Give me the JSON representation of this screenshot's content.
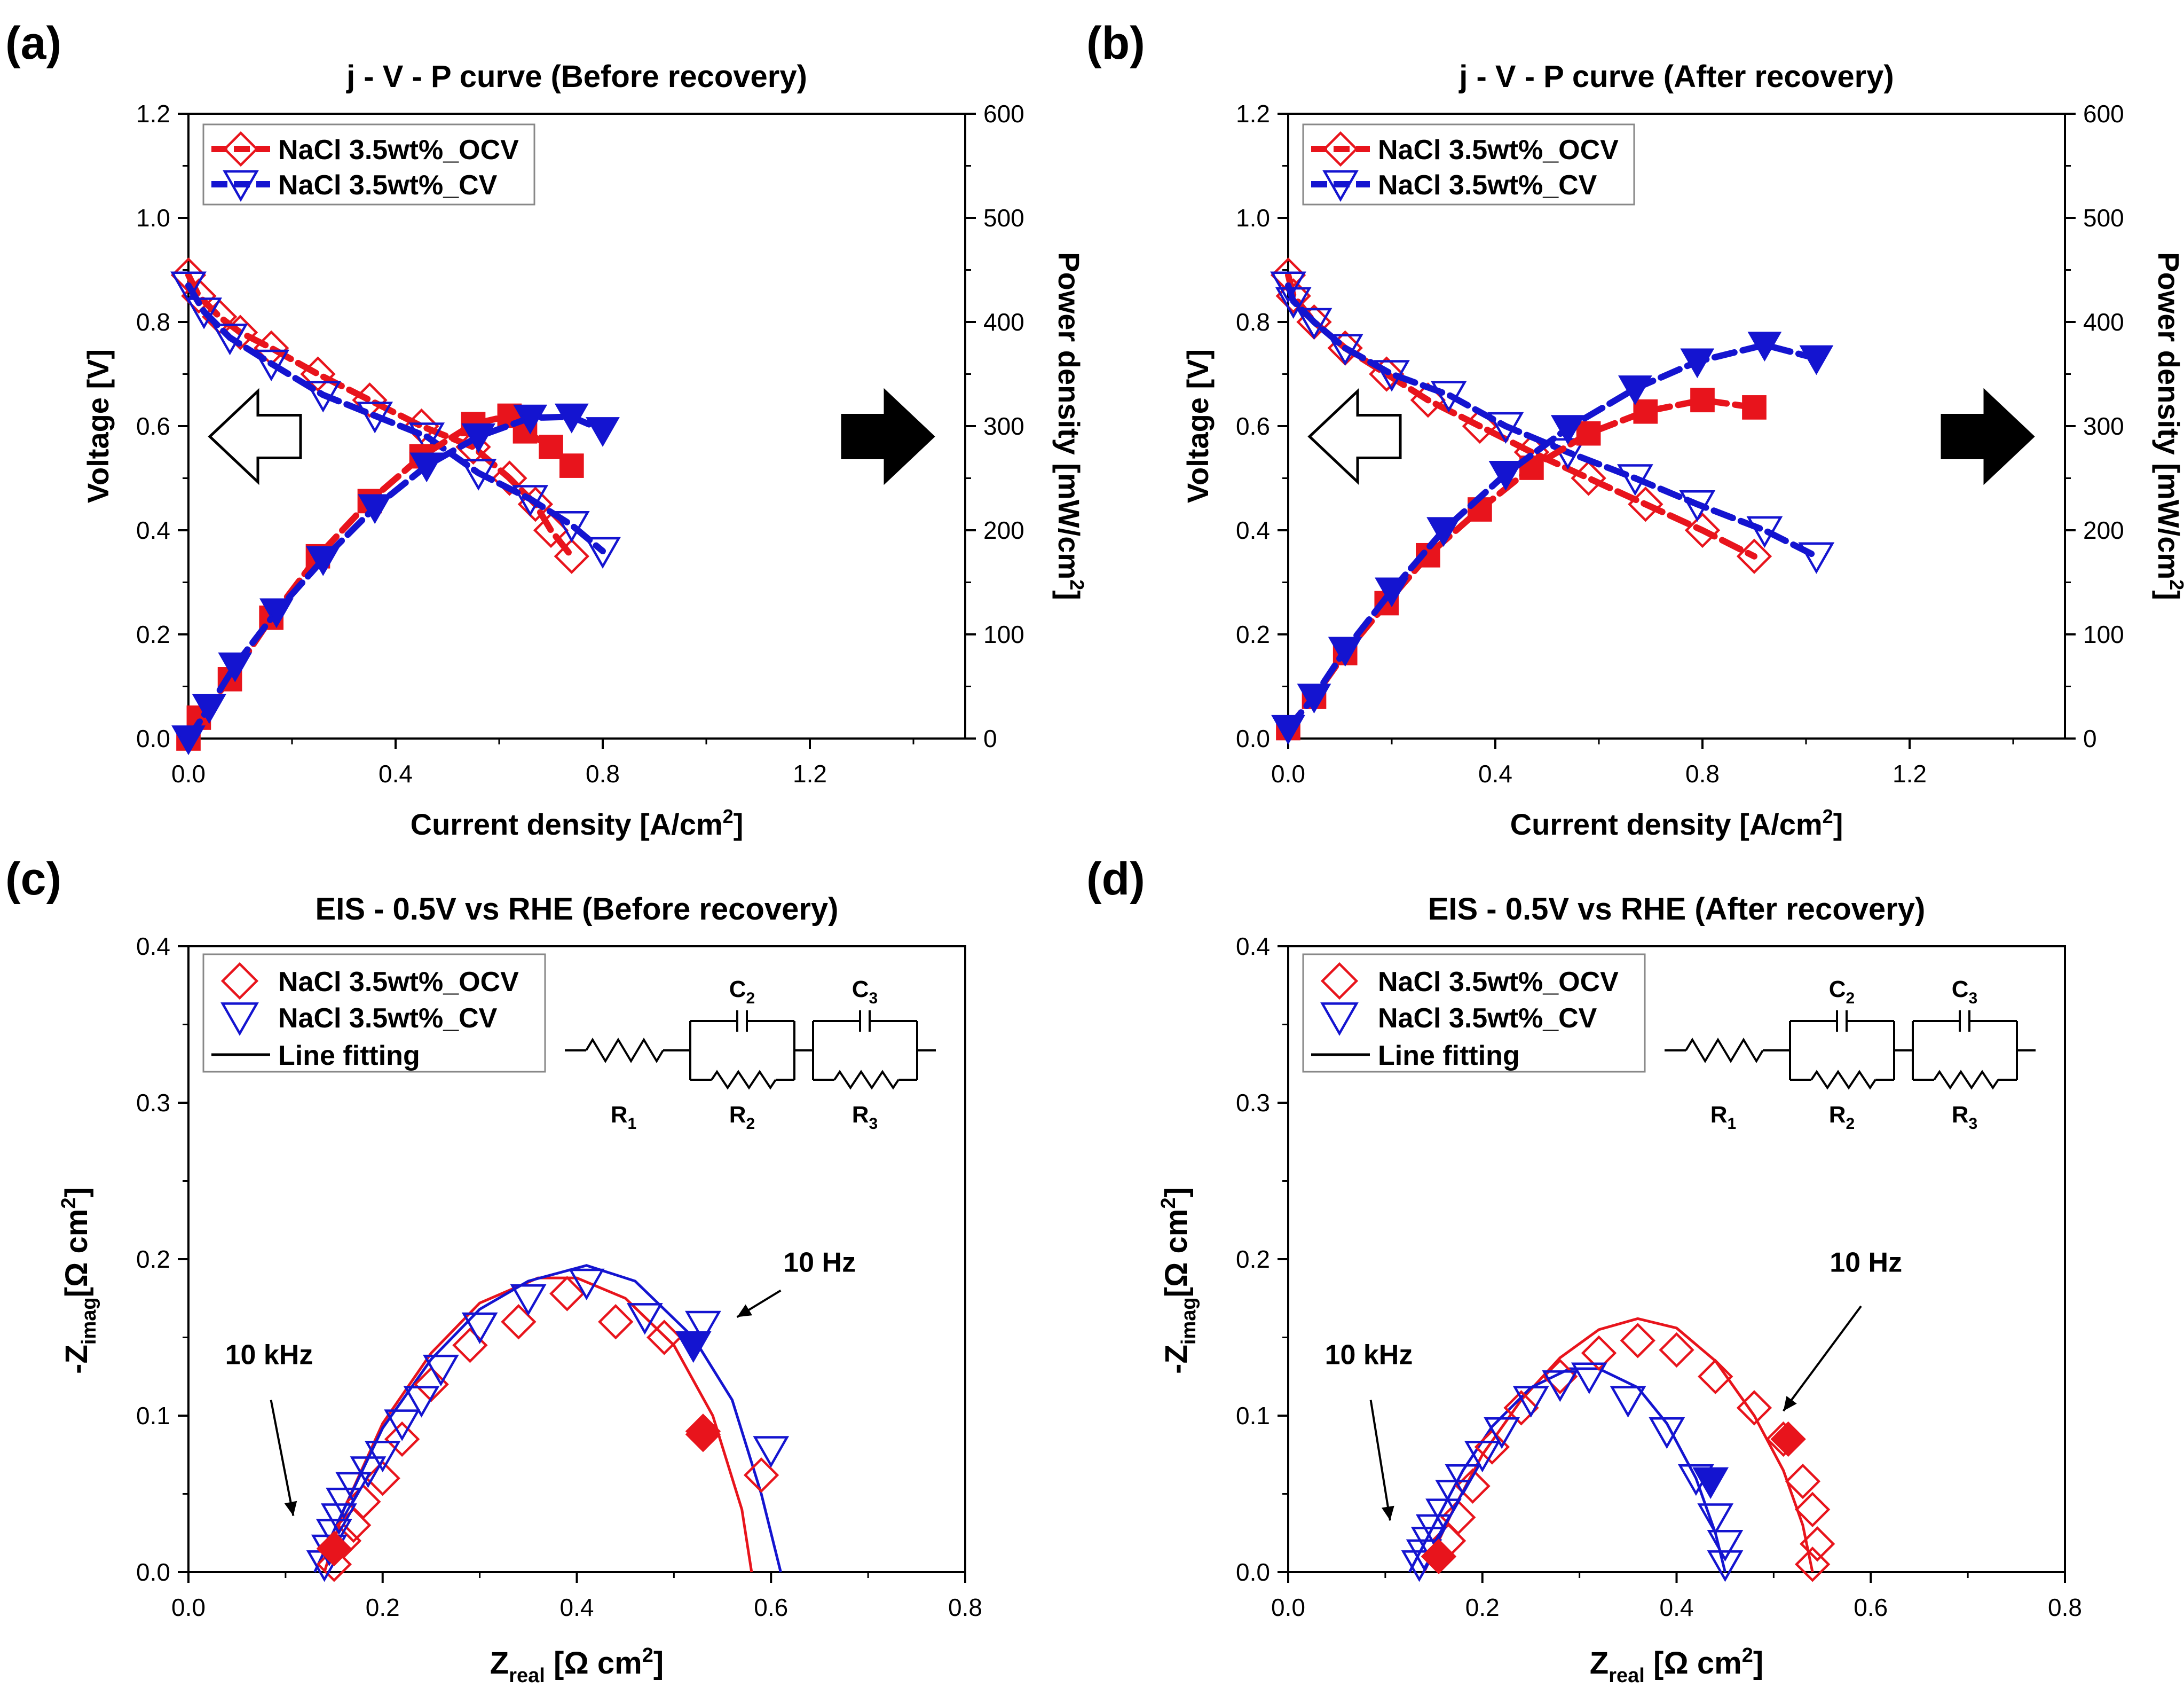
{
  "figure": {
    "panel_labels": [
      "(a)",
      "(b)",
      "(c)",
      "(d)"
    ]
  },
  "colors": {
    "ocv": "#e8141c",
    "cv": "#1414d0",
    "ink": "#000000"
  },
  "chart_data": [
    {
      "panel": "(a)",
      "type": "line",
      "title": "j - V - P curve (Before recovery)",
      "xlabel": "Current density [A/cm",
      "xlabel_sup": "2",
      "xlabel_end": "]",
      "ylabel": "Voltage [V]",
      "y2label": "Power density [mW/cm",
      "y2label_sup": "2",
      "y2label_end": "]",
      "xlim": [
        0,
        1.5
      ],
      "ylim": [
        0,
        1.2
      ],
      "y2lim": [
        0,
        600
      ],
      "xticks": [
        "0.0",
        "0.4",
        "0.8",
        "1.2"
      ],
      "yticks": [
        "0.0",
        "0.2",
        "0.4",
        "0.6",
        "0.8",
        "1.0",
        "1.2"
      ],
      "y2ticks": [
        "0",
        "100",
        "200",
        "300",
        "400",
        "500",
        "600"
      ],
      "legend": [
        "NaCl 3.5wt%_OCV",
        "NaCl 3.5wt%_CV"
      ],
      "series": [
        {
          "name": "NaCl 3.5wt%_OCV",
          "kind": "voltage",
          "color": "#e8141c",
          "marker": "diamond-open",
          "x": [
            0,
            0.02,
            0.06,
            0.1,
            0.16,
            0.25,
            0.35,
            0.45,
            0.55,
            0.62,
            0.67,
            0.7,
            0.74
          ],
          "y": [
            0.89,
            0.85,
            0.81,
            0.78,
            0.75,
            0.7,
            0.65,
            0.6,
            0.56,
            0.5,
            0.45,
            0.4,
            0.35
          ]
        },
        {
          "name": "NaCl 3.5wt%_CV",
          "kind": "voltage",
          "color": "#1414d0",
          "marker": "triangle-down-open",
          "x": [
            0,
            0.03,
            0.08,
            0.16,
            0.26,
            0.36,
            0.46,
            0.56,
            0.66,
            0.74,
            0.8
          ],
          "y": [
            0.87,
            0.82,
            0.77,
            0.72,
            0.66,
            0.62,
            0.58,
            0.51,
            0.46,
            0.41,
            0.36
          ]
        },
        {
          "name": "NaCl 3.5wt%_OCV power",
          "kind": "power",
          "color": "#e8141c",
          "marker": "square-filled",
          "x": [
            0,
            0.02,
            0.08,
            0.16,
            0.25,
            0.35,
            0.45,
            0.55,
            0.62,
            0.65,
            0.7,
            0.74
          ],
          "y": [
            0,
            20,
            57,
            116,
            175,
            228,
            271,
            302,
            310,
            295,
            280,
            262
          ]
        },
        {
          "name": "NaCl 3.5wt%_CV power",
          "kind": "power",
          "color": "#1414d0",
          "marker": "triangle-down-filled",
          "x": [
            0,
            0.04,
            0.09,
            0.17,
            0.26,
            0.36,
            0.46,
            0.56,
            0.66,
            0.74,
            0.8
          ],
          "y": [
            0,
            30,
            70,
            122,
            172,
            222,
            262,
            290,
            308,
            309,
            296
          ]
        }
      ]
    },
    {
      "panel": "(b)",
      "type": "line",
      "title": "j - V - P curve (After recovery)",
      "xlabel": "Current density [A/cm",
      "xlabel_sup": "2",
      "xlabel_end": "]",
      "ylabel": "Voltage [V]",
      "y2label": "Power density [mW/cm",
      "y2label_sup": "2",
      "y2label_end": "]",
      "xlim": [
        0,
        1.5
      ],
      "ylim": [
        0,
        1.2
      ],
      "y2lim": [
        0,
        600
      ],
      "xticks": [
        "0.0",
        "0.4",
        "0.8",
        "1.2"
      ],
      "yticks": [
        "0.0",
        "0.2",
        "0.4",
        "0.6",
        "0.8",
        "1.0",
        "1.2"
      ],
      "y2ticks": [
        "0",
        "100",
        "200",
        "300",
        "400",
        "500",
        "600"
      ],
      "legend": [
        "NaCl 3.5wt%_OCV",
        "NaCl 3.5wt%_CV"
      ],
      "series": [
        {
          "name": "NaCl 3.5wt%_OCV",
          "kind": "voltage",
          "color": "#e8141c",
          "marker": "diamond-open",
          "x": [
            0,
            0.01,
            0.05,
            0.11,
            0.19,
            0.27,
            0.37,
            0.47,
            0.58,
            0.69,
            0.8,
            0.9
          ],
          "y": [
            0.89,
            0.85,
            0.8,
            0.75,
            0.7,
            0.65,
            0.6,
            0.55,
            0.5,
            0.45,
            0.4,
            0.35
          ]
        },
        {
          "name": "NaCl 3.5wt%_CV",
          "kind": "voltage",
          "color": "#1414d0",
          "marker": "triangle-down-open",
          "x": [
            0,
            0.01,
            0.05,
            0.11,
            0.2,
            0.31,
            0.42,
            0.54,
            0.67,
            0.79,
            0.92,
            1.02
          ],
          "y": [
            0.87,
            0.84,
            0.8,
            0.75,
            0.7,
            0.66,
            0.6,
            0.55,
            0.5,
            0.45,
            0.4,
            0.35
          ]
        },
        {
          "name": "NaCl 3.5wt%_OCV power",
          "kind": "power",
          "color": "#e8141c",
          "marker": "square-filled",
          "x": [
            0,
            0.05,
            0.11,
            0.19,
            0.27,
            0.37,
            0.47,
            0.58,
            0.69,
            0.8,
            0.9
          ],
          "y": [
            10,
            40,
            82,
            130,
            176,
            220,
            260,
            293,
            314,
            325,
            318
          ]
        },
        {
          "name": "NaCl 3.5wt%_CV power",
          "kind": "power",
          "color": "#1414d0",
          "marker": "triangle-down-filled",
          "x": [
            0,
            0.05,
            0.11,
            0.2,
            0.3,
            0.42,
            0.54,
            0.67,
            0.79,
            0.92,
            1.02
          ],
          "y": [
            10,
            40,
            85,
            142,
            200,
            254,
            298,
            336,
            362,
            378,
            365
          ]
        }
      ]
    },
    {
      "panel": "(c)",
      "type": "scatter",
      "title": "EIS - 0.5V vs RHE (Before recovery)",
      "xlabel": "Z",
      "xlabel_sub": "real",
      "xlabel_end": " [Ω  cm",
      "xlabel_sup": "2",
      "xlabel_close": "]",
      "ylabel": "-Z",
      "ylabel_sub": "imag",
      "ylabel_end": "[Ω cm",
      "ylabel_sup": "2",
      "ylabel_close": "]",
      "xlim": [
        0,
        0.8
      ],
      "ylim": [
        0,
        0.4
      ],
      "xticks": [
        "0.0",
        "0.2",
        "0.4",
        "0.6",
        "0.8"
      ],
      "yticks": [
        "0.0",
        "0.1",
        "0.2",
        "0.3",
        "0.4"
      ],
      "legend": [
        "NaCl 3.5wt%_OCV",
        "NaCl 3.5wt%_CV",
        "Line fitting"
      ],
      "circuit": {
        "labels": [
          "C",
          "C",
          "R",
          "R",
          "R"
        ],
        "subs": [
          "2",
          "3",
          "1",
          "2",
          "3"
        ]
      },
      "annotations": [
        {
          "text": "10 Hz"
        },
        {
          "text": "10 kHz"
        }
      ],
      "series": [
        {
          "name": "NaCl 3.5wt%_OCV",
          "color": "#e8141c",
          "marker": "diamond-open",
          "x": [
            0.15,
            0.16,
            0.17,
            0.18,
            0.2,
            0.22,
            0.25,
            0.29,
            0.34,
            0.39,
            0.44,
            0.49,
            0.53,
            0.59
          ],
          "y": [
            0.005,
            0.02,
            0.03,
            0.045,
            0.06,
            0.085,
            0.12,
            0.145,
            0.16,
            0.178,
            0.16,
            0.15,
            0.09,
            0.062
          ]
        },
        {
          "name": "NaCl 3.5wt%_CV",
          "color": "#1414d0",
          "marker": "triangle-down-open",
          "x": [
            0.14,
            0.145,
            0.15,
            0.155,
            0.16,
            0.17,
            0.185,
            0.2,
            0.22,
            0.24,
            0.26,
            0.3,
            0.35,
            0.41,
            0.47,
            0.53,
            0.6
          ],
          "y": [
            0.005,
            0.015,
            0.025,
            0.035,
            0.045,
            0.055,
            0.065,
            0.075,
            0.095,
            0.11,
            0.13,
            0.157,
            0.175,
            0.185,
            0.163,
            0.158,
            0.078
          ]
        },
        {
          "name": "OCV highlight",
          "color": "#e8141c",
          "marker": "diamond-filled",
          "x": [
            0.15,
            0.53
          ],
          "y": [
            0.015,
            0.088
          ]
        },
        {
          "name": "CV highlight",
          "color": "#1414d0",
          "marker": "triangle-down-filled",
          "x": [
            0.52
          ],
          "y": [
            0.145
          ]
        },
        {
          "name": "Line fitting OCV",
          "color": "#e8141c",
          "marker": "line",
          "x": [
            0.14,
            0.16,
            0.2,
            0.25,
            0.3,
            0.36,
            0.4,
            0.45,
            0.5,
            0.54,
            0.57,
            0.58
          ],
          "y": [
            0,
            0.04,
            0.095,
            0.14,
            0.172,
            0.188,
            0.188,
            0.175,
            0.145,
            0.1,
            0.04,
            0
          ]
        },
        {
          "name": "Line fitting CV",
          "color": "#1414d0",
          "marker": "line",
          "x": [
            0.13,
            0.16,
            0.2,
            0.25,
            0.3,
            0.35,
            0.41,
            0.46,
            0.52,
            0.56,
            0.59,
            0.61
          ],
          "y": [
            0,
            0.04,
            0.092,
            0.136,
            0.168,
            0.186,
            0.196,
            0.186,
            0.15,
            0.11,
            0.05,
            0
          ]
        }
      ]
    },
    {
      "panel": "(d)",
      "type": "scatter",
      "title": "EIS - 0.5V vs RHE (After recovery)",
      "xlabel": "Z",
      "xlabel_sub": "real",
      "xlabel_end": " [Ω  cm",
      "xlabel_sup": "2",
      "xlabel_close": "]",
      "ylabel": "-Z",
      "ylabel_sub": "imag",
      "ylabel_end": "[Ω cm",
      "ylabel_sup": "2",
      "ylabel_close": "]",
      "xlim": [
        0,
        0.8
      ],
      "ylim": [
        0,
        0.4
      ],
      "xticks": [
        "0.0",
        "0.2",
        "0.4",
        "0.6",
        "0.8"
      ],
      "yticks": [
        "0.0",
        "0.1",
        "0.2",
        "0.3",
        "0.4"
      ],
      "legend": [
        "NaCl 3.5wt%_OCV",
        "NaCl 3.5wt%_CV",
        "Line fitting"
      ],
      "circuit": {
        "labels": [
          "C",
          "C",
          "R",
          "R",
          "R"
        ],
        "subs": [
          "2",
          "3",
          "1",
          "2",
          "3"
        ]
      },
      "annotations": [
        {
          "text": "10 Hz"
        },
        {
          "text": "10 kHz"
        }
      ],
      "series": [
        {
          "name": "NaCl 3.5wt%_OCV",
          "color": "#e8141c",
          "marker": "diamond-open",
          "x": [
            0.155,
            0.165,
            0.175,
            0.19,
            0.21,
            0.24,
            0.28,
            0.32,
            0.36,
            0.4,
            0.44,
            0.48,
            0.51,
            0.53,
            0.54,
            0.545,
            0.54
          ],
          "y": [
            0.01,
            0.02,
            0.035,
            0.055,
            0.08,
            0.105,
            0.125,
            0.14,
            0.148,
            0.142,
            0.125,
            0.105,
            0.085,
            0.058,
            0.04,
            0.018,
            0.005
          ]
        },
        {
          "name": "NaCl 3.5wt%_CV",
          "color": "#1414d0",
          "marker": "triangle-down-open",
          "x": [
            0.135,
            0.14,
            0.145,
            0.15,
            0.16,
            0.17,
            0.18,
            0.2,
            0.22,
            0.25,
            0.28,
            0.31,
            0.35,
            0.39,
            0.42,
            0.44,
            0.45,
            0.45
          ],
          "y": [
            0.005,
            0.012,
            0.02,
            0.028,
            0.038,
            0.05,
            0.06,
            0.075,
            0.09,
            0.11,
            0.12,
            0.125,
            0.11,
            0.09,
            0.06,
            0.035,
            0.018,
            0.005
          ]
        },
        {
          "name": "OCV highlight",
          "color": "#e8141c",
          "marker": "diamond-filled",
          "x": [
            0.155,
            0.515
          ],
          "y": [
            0.01,
            0.085
          ]
        },
        {
          "name": "CV highlight",
          "color": "#1414d0",
          "marker": "triangle-down-filled",
          "x": [
            0.435
          ],
          "y": [
            0.058
          ]
        },
        {
          "name": "Line fitting OCV",
          "color": "#e8141c",
          "marker": "line",
          "x": [
            0.14,
            0.17,
            0.2,
            0.24,
            0.28,
            0.32,
            0.36,
            0.4,
            0.44,
            0.48,
            0.51,
            0.53,
            0.54
          ],
          "y": [
            0,
            0.04,
            0.075,
            0.11,
            0.137,
            0.155,
            0.162,
            0.156,
            0.135,
            0.1,
            0.065,
            0.03,
            0
          ]
        },
        {
          "name": "Line fitting CV",
          "color": "#1414d0",
          "marker": "line",
          "x": [
            0.125,
            0.15,
            0.18,
            0.21,
            0.25,
            0.29,
            0.32,
            0.36,
            0.39,
            0.42,
            0.44,
            0.45
          ],
          "y": [
            0,
            0.03,
            0.065,
            0.093,
            0.118,
            0.13,
            0.13,
            0.118,
            0.095,
            0.06,
            0.025,
            0
          ]
        }
      ]
    }
  ]
}
